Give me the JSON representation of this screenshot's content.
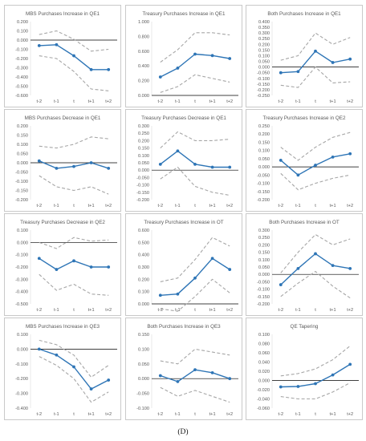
{
  "figure": {
    "caption": "(D)"
  },
  "style": {
    "series_color": "#2e75b6",
    "band_color": "#a6a6a6",
    "zero_line_color": "#000000",
    "axis_color": "#d9d9d9"
  },
  "chart_data": [
    {
      "type": "line",
      "title": "MBS Purchases Increase in QE1",
      "x": [
        "t-2",
        "t-1",
        "t",
        "t+1",
        "t+2"
      ],
      "ylim": [
        -0.6,
        0.2
      ],
      "yticks": [
        -0.6,
        -0.5,
        -0.4,
        -0.3,
        -0.2,
        -0.1,
        0.0,
        0.1,
        0.2
      ],
      "decimals": 3,
      "series": [
        {
          "role": "estimate",
          "values": [
            -0.06,
            -0.05,
            -0.17,
            -0.32,
            -0.32
          ]
        },
        {
          "role": "upper",
          "values": [
            0.06,
            0.1,
            0.01,
            -0.12,
            -0.1
          ]
        },
        {
          "role": "lower",
          "values": [
            -0.17,
            -0.2,
            -0.34,
            -0.53,
            -0.55
          ]
        }
      ]
    },
    {
      "type": "line",
      "title": "Treasury Purchases Increase in QE1",
      "x": [
        "t-2",
        "t-1",
        "t",
        "t+1",
        "t+2"
      ],
      "ylim": [
        0.0,
        1.0
      ],
      "yticks": [
        0.0,
        0.2,
        0.4,
        0.6,
        0.8,
        1.0
      ],
      "decimals": 3,
      "series": [
        {
          "role": "estimate",
          "values": [
            0.25,
            0.37,
            0.56,
            0.54,
            0.5
          ]
        },
        {
          "role": "upper",
          "values": [
            0.45,
            0.62,
            0.85,
            0.85,
            0.82
          ]
        },
        {
          "role": "lower",
          "values": [
            0.04,
            0.12,
            0.28,
            0.23,
            0.18
          ]
        }
      ]
    },
    {
      "type": "line",
      "title": "Both Purchases Increase in QE1",
      "x": [
        "t-2",
        "t-1",
        "t",
        "t+1",
        "t+2"
      ],
      "ylim": [
        -0.25,
        0.4
      ],
      "yticks": [
        -0.25,
        -0.2,
        -0.15,
        -0.1,
        -0.05,
        0.0,
        0.05,
        0.1,
        0.15,
        0.2,
        0.25,
        0.3,
        0.35,
        0.4
      ],
      "decimals": 3,
      "series": [
        {
          "role": "estimate",
          "values": [
            -0.05,
            -0.04,
            0.14,
            0.04,
            0.07
          ]
        },
        {
          "role": "upper",
          "values": [
            0.06,
            0.1,
            0.3,
            0.2,
            0.26
          ]
        },
        {
          "role": "lower",
          "values": [
            -0.16,
            -0.18,
            0.0,
            -0.14,
            -0.13
          ]
        }
      ]
    },
    {
      "type": "line",
      "title": "MBS Purchases Decrease in QE1",
      "x": [
        "t-2",
        "t-1",
        "t",
        "t+1",
        "t+2"
      ],
      "ylim": [
        -0.2,
        0.2
      ],
      "yticks": [
        -0.2,
        -0.15,
        -0.1,
        -0.05,
        0.0,
        0.05,
        0.1,
        0.15,
        0.2
      ],
      "decimals": 3,
      "series": [
        {
          "role": "estimate",
          "values": [
            0.01,
            -0.03,
            -0.02,
            0.0,
            -0.03
          ]
        },
        {
          "role": "upper",
          "values": [
            0.09,
            0.08,
            0.1,
            0.14,
            0.13
          ]
        },
        {
          "role": "lower",
          "values": [
            -0.07,
            -0.13,
            -0.15,
            -0.13,
            -0.17
          ]
        }
      ]
    },
    {
      "type": "line",
      "title": "Treasury Purchases Decrease in QE1",
      "x": [
        "t-2",
        "t-1",
        "t",
        "t+1",
        "t+2"
      ],
      "ylim": [
        -0.2,
        0.3
      ],
      "yticks": [
        -0.2,
        -0.15,
        -0.1,
        -0.05,
        0.0,
        0.05,
        0.1,
        0.15,
        0.2,
        0.25,
        0.3
      ],
      "decimals": 3,
      "series": [
        {
          "role": "estimate",
          "values": [
            0.04,
            0.13,
            0.04,
            0.02,
            0.02
          ]
        },
        {
          "role": "upper",
          "values": [
            0.15,
            0.26,
            0.2,
            0.2,
            0.21
          ]
        },
        {
          "role": "lower",
          "values": [
            -0.06,
            0.02,
            -0.11,
            -0.15,
            -0.17
          ]
        }
      ]
    },
    {
      "type": "line",
      "title": "Treasury Purchases Increase in QE2",
      "x": [
        "t-2",
        "t-1",
        "t",
        "t+1",
        "t+2"
      ],
      "ylim": [
        -0.2,
        0.25
      ],
      "yticks": [
        -0.2,
        -0.15,
        -0.1,
        -0.05,
        0.0,
        0.05,
        0.1,
        0.15,
        0.2,
        0.25
      ],
      "decimals": 3,
      "series": [
        {
          "role": "estimate",
          "values": [
            0.04,
            -0.05,
            0.01,
            0.06,
            0.08
          ]
        },
        {
          "role": "upper",
          "values": [
            0.12,
            0.04,
            0.12,
            0.18,
            0.21
          ]
        },
        {
          "role": "lower",
          "values": [
            -0.04,
            -0.14,
            -0.1,
            -0.07,
            -0.05
          ]
        }
      ]
    },
    {
      "type": "line",
      "title": "Treasury Purchases Decrease in QE2",
      "x": [
        "t-2",
        "t-1",
        "t",
        "t+1",
        "t+2"
      ],
      "ylim": [
        -0.5,
        0.1
      ],
      "yticks": [
        -0.5,
        -0.4,
        -0.3,
        -0.2,
        -0.1,
        0.0,
        0.1
      ],
      "decimals": 3,
      "series": [
        {
          "role": "estimate",
          "values": [
            -0.13,
            -0.22,
            -0.15,
            -0.2,
            -0.2
          ]
        },
        {
          "role": "upper",
          "values": [
            0.0,
            -0.05,
            0.04,
            0.01,
            0.02
          ]
        },
        {
          "role": "lower",
          "values": [
            -0.26,
            -0.39,
            -0.34,
            -0.42,
            -0.43
          ]
        }
      ]
    },
    {
      "type": "line",
      "title": "Treasury Purchases Increase in OT",
      "x": [
        "t-2",
        "t-1",
        "t",
        "t+1",
        "t+2"
      ],
      "ylim": [
        0.0,
        0.6
      ],
      "yticks": [
        0.0,
        0.1,
        0.2,
        0.3,
        0.4,
        0.5,
        0.6
      ],
      "decimals": 3,
      "series": [
        {
          "role": "estimate",
          "values": [
            0.07,
            0.08,
            0.21,
            0.37,
            0.28
          ]
        },
        {
          "role": "upper",
          "values": [
            0.18,
            0.21,
            0.36,
            0.54,
            0.47
          ]
        },
        {
          "role": "lower",
          "values": [
            -0.04,
            -0.06,
            0.06,
            0.2,
            0.09
          ]
        }
      ]
    },
    {
      "type": "line",
      "title": "Both Purchases Increase in OT",
      "x": [
        "t-2",
        "t-1",
        "t",
        "t+1",
        "t+2"
      ],
      "ylim": [
        -0.2,
        0.3
      ],
      "yticks": [
        -0.2,
        -0.15,
        -0.1,
        -0.05,
        0.0,
        0.05,
        0.1,
        0.15,
        0.2,
        0.25,
        0.3
      ],
      "decimals": 3,
      "series": [
        {
          "role": "estimate",
          "values": [
            -0.07,
            0.04,
            0.14,
            0.06,
            0.04
          ]
        },
        {
          "role": "upper",
          "values": [
            0.01,
            0.15,
            0.27,
            0.2,
            0.24
          ]
        },
        {
          "role": "lower",
          "values": [
            -0.15,
            -0.06,
            0.02,
            -0.08,
            -0.16
          ]
        }
      ]
    },
    {
      "type": "line",
      "title": "MBS Purchases Increase in QE3",
      "x": [
        "t-2",
        "t-1",
        "t",
        "t+1",
        "t+2"
      ],
      "ylim": [
        -0.4,
        0.1
      ],
      "yticks": [
        -0.4,
        -0.3,
        -0.2,
        -0.1,
        0.0,
        0.1
      ],
      "decimals": 3,
      "series": [
        {
          "role": "estimate",
          "values": [
            0.0,
            -0.04,
            -0.12,
            -0.27,
            -0.21
          ]
        },
        {
          "role": "upper",
          "values": [
            0.06,
            0.03,
            -0.04,
            -0.19,
            -0.11
          ]
        },
        {
          "role": "lower",
          "values": [
            -0.05,
            -0.11,
            -0.2,
            -0.36,
            -0.29
          ]
        }
      ]
    },
    {
      "type": "line",
      "title": "Both Purchases Increase in QE3",
      "x": [
        "t-2",
        "t-1",
        "t",
        "t+1",
        "t+2"
      ],
      "ylim": [
        -0.1,
        0.15
      ],
      "yticks": [
        -0.1,
        -0.05,
        0.0,
        0.05,
        0.1,
        0.15
      ],
      "decimals": 3,
      "series": [
        {
          "role": "estimate",
          "values": [
            0.01,
            -0.01,
            0.03,
            0.02,
            0.0
          ]
        },
        {
          "role": "upper",
          "values": [
            0.06,
            0.05,
            0.1,
            0.09,
            0.08
          ]
        },
        {
          "role": "lower",
          "values": [
            -0.03,
            -0.06,
            -0.04,
            -0.06,
            -0.08
          ]
        }
      ]
    },
    {
      "type": "line",
      "title": "QE Tapering",
      "x": [
        "t-2",
        "t-1",
        "t",
        "t+1",
        "t+2"
      ],
      "ylim": [
        -0.06,
        0.1
      ],
      "yticks": [
        -0.06,
        -0.04,
        -0.02,
        0.0,
        0.02,
        0.04,
        0.06,
        0.08,
        0.1
      ],
      "decimals": 3,
      "series": [
        {
          "role": "estimate",
          "values": [
            -0.014,
            -0.013,
            -0.007,
            0.012,
            0.035
          ]
        },
        {
          "role": "upper",
          "values": [
            0.01,
            0.015,
            0.025,
            0.045,
            0.075
          ]
        },
        {
          "role": "lower",
          "values": [
            -0.035,
            -0.04,
            -0.04,
            -0.025,
            -0.005
          ]
        }
      ]
    }
  ]
}
